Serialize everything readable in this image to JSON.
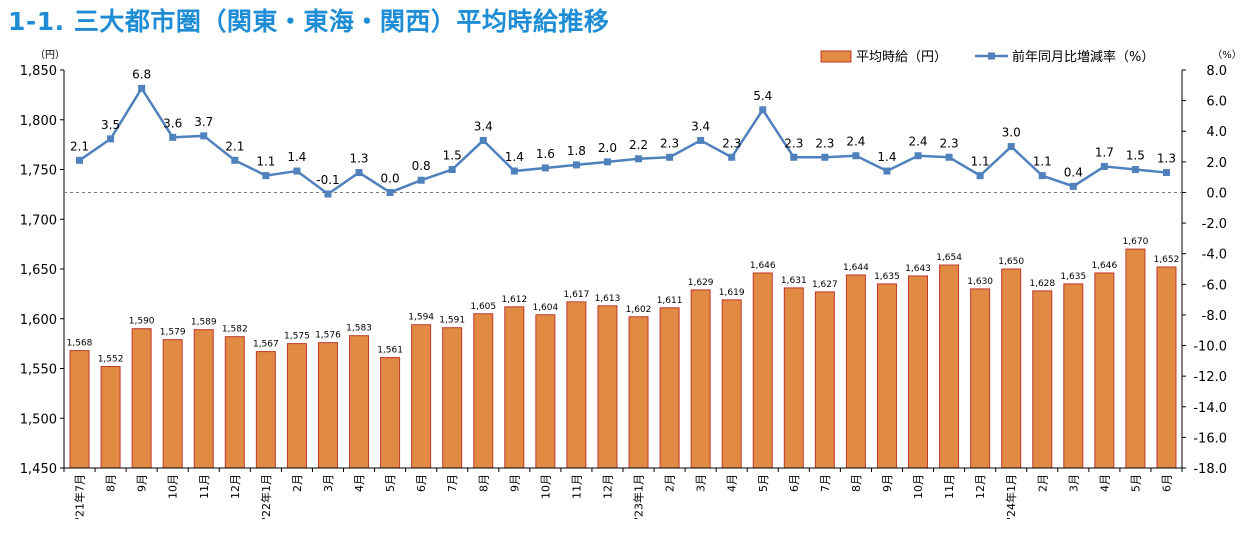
{
  "title": "1-1. 三大都市圏（関東・東海・関西）平均時給推移",
  "chart_data": {
    "type": "bar",
    "categories": [
      "'21年7月",
      "8月",
      "9月",
      "10月",
      "11月",
      "12月",
      "'22年1月",
      "2月",
      "3月",
      "4月",
      "5月",
      "6月",
      "7月",
      "8月",
      "9月",
      "10月",
      "11月",
      "12月",
      "'23年1月",
      "2月",
      "3月",
      "4月",
      "5月",
      "6月",
      "7月",
      "8月",
      "9月",
      "10月",
      "11月",
      "12月",
      "'24年1月",
      "2月",
      "3月",
      "4月",
      "5月",
      "6月"
    ],
    "series": [
      {
        "name": "平均時給（円）",
        "type": "bar",
        "axis": "left",
        "color": "#e08a44",
        "values": [
          1568,
          1552,
          1590,
          1579,
          1589,
          1582,
          1567,
          1575,
          1576,
          1583,
          1561,
          1594,
          1591,
          1605,
          1612,
          1604,
          1617,
          1613,
          1602,
          1611,
          1629,
          1619,
          1646,
          1631,
          1627,
          1644,
          1635,
          1643,
          1654,
          1630,
          1650,
          1628,
          1635,
          1646,
          1670,
          1652
        ]
      },
      {
        "name": "前年同月比増減率（%）",
        "type": "line",
        "axis": "right",
        "color": "#4f81bd",
        "values": [
          2.1,
          3.5,
          6.8,
          3.6,
          3.7,
          2.1,
          1.1,
          1.4,
          -0.1,
          1.3,
          0.0,
          0.8,
          1.5,
          3.4,
          1.4,
          1.6,
          1.8,
          2.0,
          2.2,
          2.3,
          3.4,
          2.3,
          5.4,
          2.3,
          2.3,
          2.4,
          1.4,
          2.4,
          2.3,
          1.1,
          3.0,
          1.1,
          0.4,
          1.7,
          1.5,
          1.3
        ]
      }
    ],
    "y_left": {
      "unit_label": "（円）",
      "range": [
        1450,
        1850
      ],
      "ticks": [
        1450,
        1500,
        1550,
        1600,
        1650,
        1700,
        1750,
        1800,
        1850
      ],
      "tick_labels": [
        "1,450",
        "1,500",
        "1,550",
        "1,600",
        "1,650",
        "1,700",
        "1,750",
        "1,800",
        "1,850"
      ]
    },
    "y_right": {
      "unit_label": "（%）",
      "range": [
        -18,
        8
      ],
      "ticks": [
        8,
        6,
        4,
        2,
        0,
        -2,
        -4,
        -6,
        -8,
        -10,
        -12,
        -14,
        -16,
        -18
      ],
      "tick_labels": [
        "8.0",
        "6.0",
        "4.0",
        "2.0",
        "0.0",
        "-2.0",
        "-4.0",
        "-6.0",
        "-8.0",
        "-10.0",
        "-12.0",
        "-14.0",
        "-16.0",
        "-18.0"
      ]
    },
    "legend": {
      "position": "top-right",
      "items": [
        "平均時給（円）",
        "前年同月比増減率（%）"
      ]
    },
    "zero_reference_line": true
  }
}
